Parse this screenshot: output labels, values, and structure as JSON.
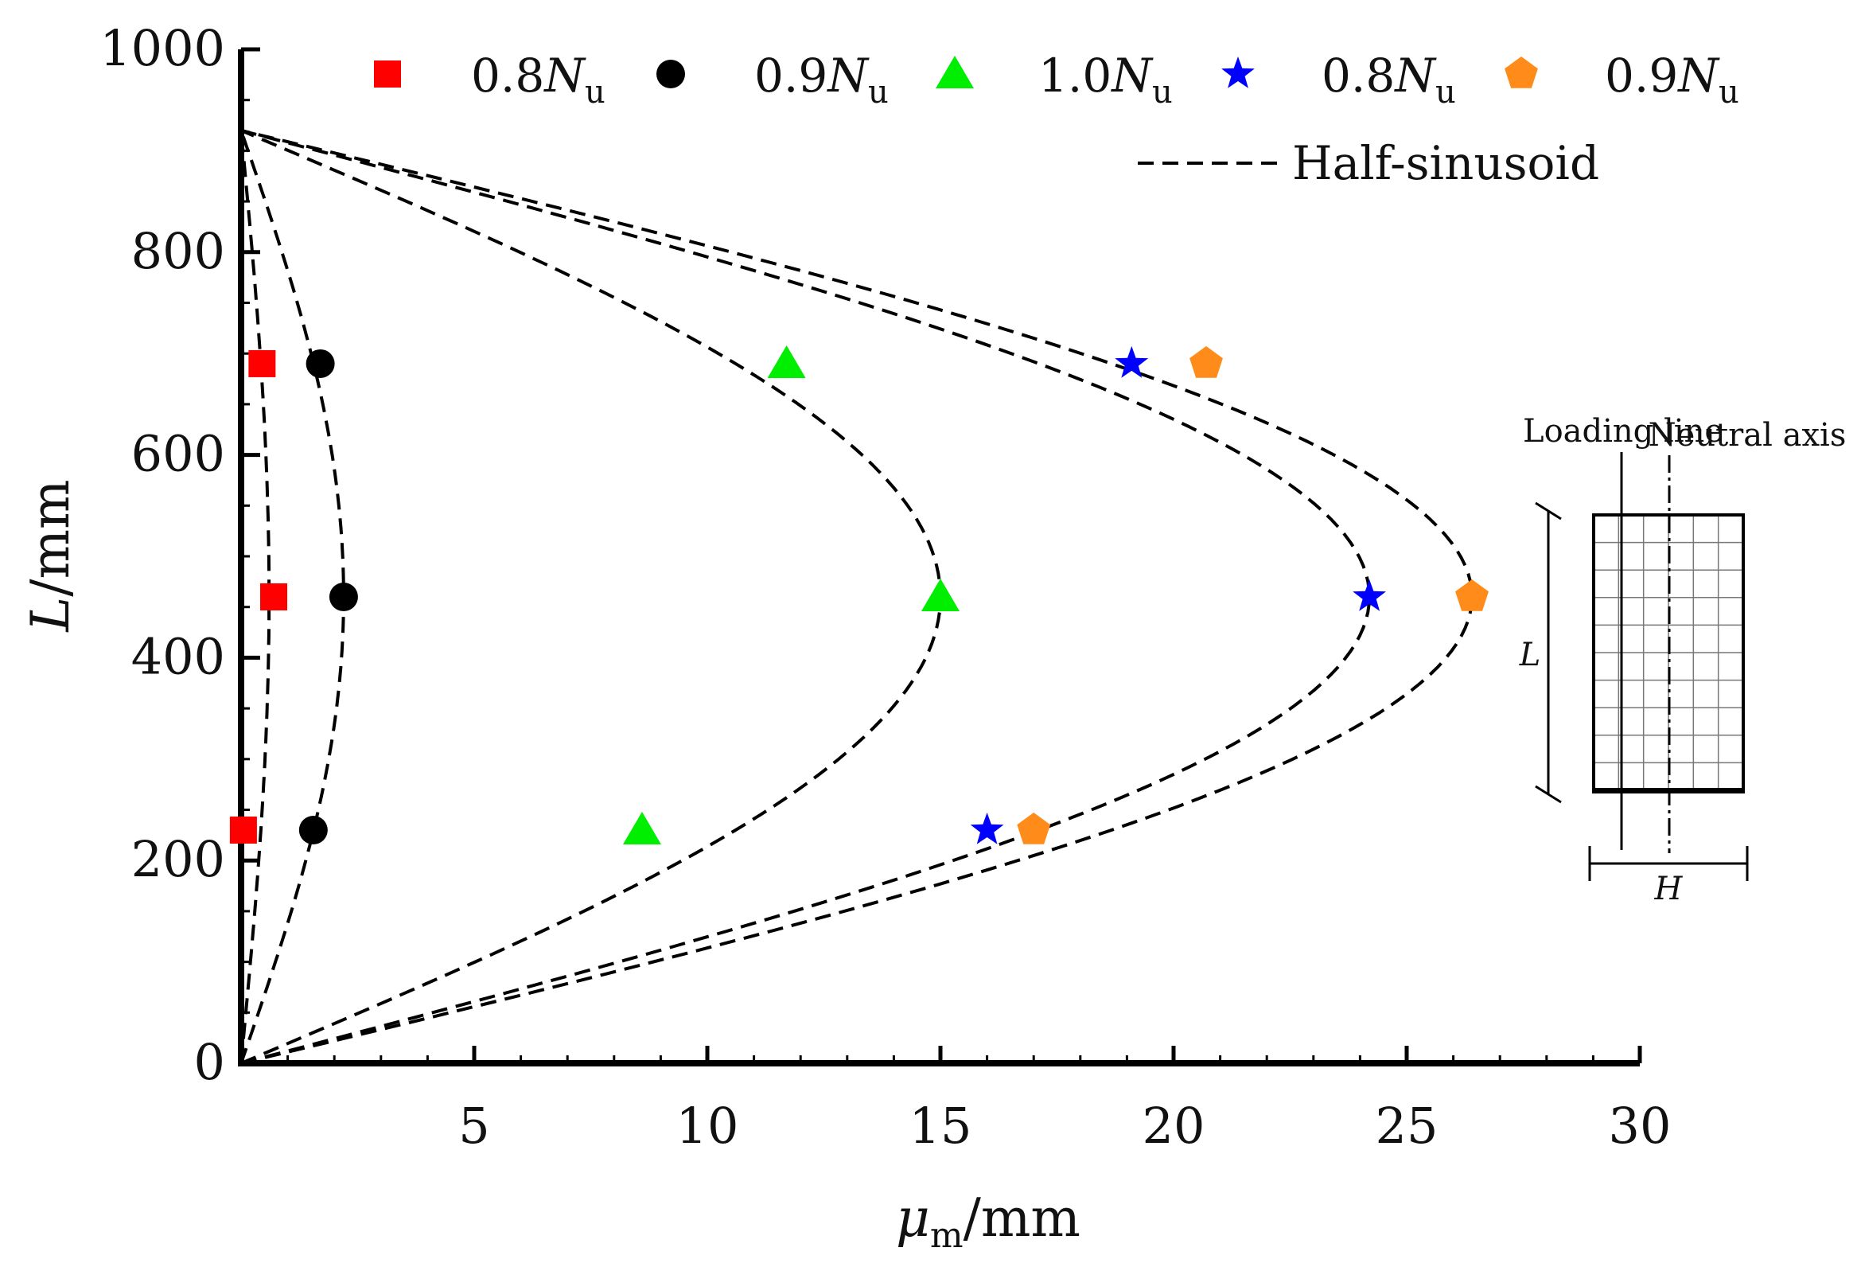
{
  "chart_data": {
    "type": "scatter",
    "title": "",
    "xlabel": {
      "main": "μ",
      "sub": "m",
      "unit": "/mm"
    },
    "ylabel": {
      "main": "L",
      "unit": "/mm"
    },
    "xlim": [
      0,
      30
    ],
    "ylim": [
      0,
      1000
    ],
    "x_ticks": [
      5,
      10,
      15,
      20,
      25,
      30
    ],
    "y_ticks": [
      0,
      200,
      400,
      600,
      800,
      1000
    ],
    "x_tick_labels": [
      "5",
      "10",
      "15",
      "20",
      "25",
      "30"
    ],
    "y_tick_labels": [
      "0",
      "200",
      "400",
      "600",
      "800",
      "1000"
    ],
    "grid": false,
    "legend_position": "top",
    "series": [
      {
        "name": "0.8",
        "symbol": "N",
        "sub": "u",
        "marker": "square",
        "color": "#ff0000",
        "points": [
          [
            0.45,
            690
          ],
          [
            0.7,
            460
          ],
          [
            0.05,
            230
          ]
        ]
      },
      {
        "name": "0.9",
        "symbol": "N",
        "sub": "u",
        "marker": "circle",
        "color": "#000000",
        "points": [
          [
            1.7,
            690
          ],
          [
            2.2,
            460
          ],
          [
            1.55,
            230
          ]
        ]
      },
      {
        "name": "1.0",
        "symbol": "N",
        "sub": "u",
        "marker": "triangle",
        "color": "#00ee00",
        "points": [
          [
            11.7,
            690
          ],
          [
            15.0,
            460
          ],
          [
            8.6,
            230
          ]
        ]
      },
      {
        "name": "0.8",
        "symbol": "N",
        "sub": "u",
        "marker": "star",
        "color": "#0000ff",
        "points": [
          [
            19.1,
            690
          ],
          [
            24.2,
            460
          ],
          [
            16.0,
            230
          ]
        ]
      },
      {
        "name": "0.9",
        "symbol": "N",
        "sub": "u",
        "marker": "pentagon",
        "color": "#ff8c1a",
        "points": [
          [
            20.7,
            690
          ],
          [
            26.4,
            460
          ],
          [
            17.0,
            230
          ]
        ]
      }
    ],
    "half_sinusoid": {
      "label": "Half-sinusoid",
      "color": "#000000",
      "span_mm": [
        0,
        920
      ],
      "amplitudes": [
        0.6,
        2.2,
        15.0,
        24.2,
        26.4
      ]
    },
    "inset": {
      "loading_line_label": "Loading line",
      "neutral_axis_label": "Neutral axis",
      "length_label": "L",
      "height_label": "H"
    }
  }
}
